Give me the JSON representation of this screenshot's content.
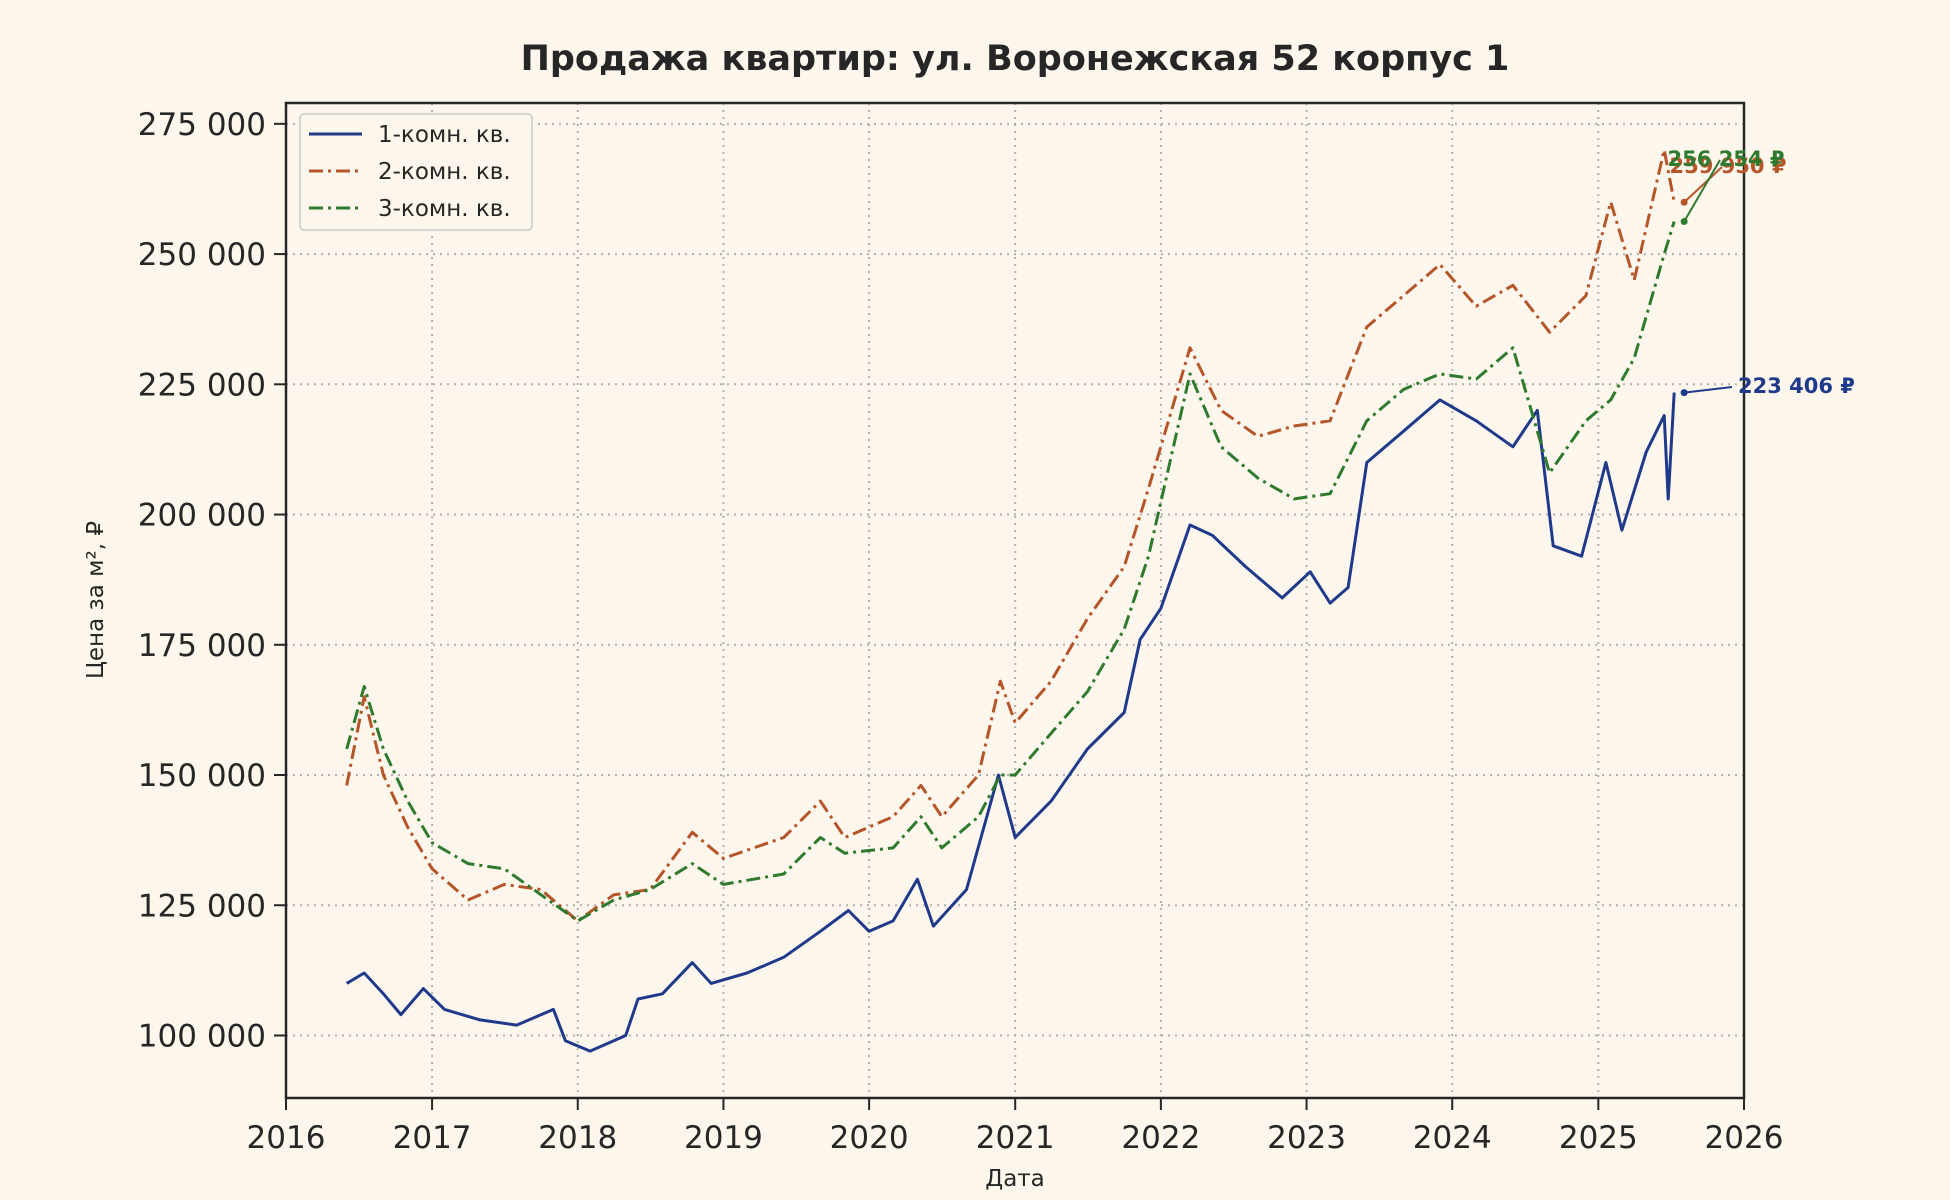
{
  "chart_data": {
    "type": "line",
    "title": "Продажа квартир: ул. Воронежская 52 корпус 1",
    "xlabel": "Дата",
    "ylabel": "Цена за м², ₽",
    "xlim": [
      "2016-01-01",
      "2026-01-01"
    ],
    "ylim": [
      88000,
      279000
    ],
    "x_ticks": [
      "2016",
      "2017",
      "2018",
      "2019",
      "2020",
      "2021",
      "2022",
      "2023",
      "2024",
      "2025",
      "2026"
    ],
    "y_ticks": [
      100000,
      125000,
      150000,
      175000,
      200000,
      225000,
      250000,
      275000
    ],
    "y_tick_labels": [
      "100 000",
      "125 000",
      "150 000",
      "175 000",
      "200 000",
      "225 000",
      "250 000",
      "275 000"
    ],
    "grid": true,
    "legend_position": "top-left",
    "series": [
      {
        "name": "1-комн. кв.",
        "color": "#1f3a8a",
        "dash": "solid",
        "end_label": "223 406 ₽",
        "points": [
          [
            "2016-06-01",
            110000
          ],
          [
            "2016-07-15",
            112000
          ],
          [
            "2016-09-01",
            108000
          ],
          [
            "2016-10-15",
            104000
          ],
          [
            "2016-12-10",
            109000
          ],
          [
            "2017-02-01",
            105000
          ],
          [
            "2017-05-01",
            103000
          ],
          [
            "2017-08-01",
            102000
          ],
          [
            "2017-11-01",
            105000
          ],
          [
            "2017-12-01",
            99000
          ],
          [
            "2018-02-01",
            97000
          ],
          [
            "2018-05-01",
            100000
          ],
          [
            "2018-06-01",
            107000
          ],
          [
            "2018-08-01",
            108000
          ],
          [
            "2018-10-15",
            114000
          ],
          [
            "2018-12-01",
            110000
          ],
          [
            "2019-03-01",
            112000
          ],
          [
            "2019-06-01",
            115000
          ],
          [
            "2019-09-01",
            120000
          ],
          [
            "2019-11-10",
            124000
          ],
          [
            "2020-01-01",
            120000
          ],
          [
            "2020-03-01",
            122000
          ],
          [
            "2020-05-01",
            130000
          ],
          [
            "2020-06-10",
            121000
          ],
          [
            "2020-09-01",
            128000
          ],
          [
            "2020-11-20",
            150000
          ],
          [
            "2021-01-01",
            138000
          ],
          [
            "2021-04-01",
            145000
          ],
          [
            "2021-07-01",
            155000
          ],
          [
            "2021-10-01",
            162000
          ],
          [
            "2021-11-10",
            176000
          ],
          [
            "2022-01-01",
            182000
          ],
          [
            "2022-03-15",
            198000
          ],
          [
            "2022-05-10",
            196000
          ],
          [
            "2022-08-01",
            190000
          ],
          [
            "2022-11-01",
            184000
          ],
          [
            "2023-01-10",
            189000
          ],
          [
            "2023-03-01",
            183000
          ],
          [
            "2023-04-15",
            186000
          ],
          [
            "2023-06-01",
            210000
          ],
          [
            "2023-09-01",
            216000
          ],
          [
            "2023-12-01",
            222000
          ],
          [
            "2024-03-01",
            218000
          ],
          [
            "2024-06-01",
            213000
          ],
          [
            "2024-08-01",
            220000
          ],
          [
            "2024-09-10",
            194000
          ],
          [
            "2024-11-20",
            192000
          ],
          [
            "2025-01-20",
            210000
          ],
          [
            "2025-03-01",
            197000
          ],
          [
            "2025-05-01",
            212000
          ],
          [
            "2025-06-15",
            219000
          ],
          [
            "2025-06-25",
            203000
          ],
          [
            "2025-07-10",
            223406
          ]
        ]
      },
      {
        "name": "2-комн. кв.",
        "color": "#b5562a",
        "dash": "dashdot",
        "end_label": "259 950 ₽",
        "points": [
          [
            "2016-06-01",
            148000
          ],
          [
            "2016-07-15",
            165000
          ],
          [
            "2016-09-01",
            150000
          ],
          [
            "2016-11-01",
            140000
          ],
          [
            "2017-01-01",
            132000
          ],
          [
            "2017-04-01",
            126000
          ],
          [
            "2017-07-01",
            129000
          ],
          [
            "2017-10-01",
            128000
          ],
          [
            "2018-01-01",
            122000
          ],
          [
            "2018-04-01",
            127000
          ],
          [
            "2018-07-01",
            128000
          ],
          [
            "2018-10-15",
            139000
          ],
          [
            "2019-01-01",
            134000
          ],
          [
            "2019-06-01",
            138000
          ],
          [
            "2019-09-01",
            145000
          ],
          [
            "2019-11-01",
            138000
          ],
          [
            "2020-03-01",
            142000
          ],
          [
            "2020-05-10",
            148000
          ],
          [
            "2020-07-01",
            142000
          ],
          [
            "2020-10-01",
            150000
          ],
          [
            "2020-11-25",
            168000
          ],
          [
            "2021-01-01",
            160000
          ],
          [
            "2021-04-01",
            168000
          ],
          [
            "2021-07-01",
            180000
          ],
          [
            "2021-10-01",
            190000
          ],
          [
            "2021-12-01",
            205000
          ],
          [
            "2022-03-15",
            232000
          ],
          [
            "2022-06-01",
            220000
          ],
          [
            "2022-09-01",
            215000
          ],
          [
            "2022-12-01",
            217000
          ],
          [
            "2023-03-01",
            218000
          ],
          [
            "2023-06-01",
            236000
          ],
          [
            "2023-09-01",
            242000
          ],
          [
            "2023-12-01",
            248000
          ],
          [
            "2024-03-01",
            240000
          ],
          [
            "2024-06-01",
            244000
          ],
          [
            "2024-09-01",
            235000
          ],
          [
            "2024-12-01",
            242000
          ],
          [
            "2025-02-01",
            260000
          ],
          [
            "2025-04-01",
            245000
          ],
          [
            "2025-06-15",
            270000
          ],
          [
            "2025-07-10",
            259950
          ]
        ]
      },
      {
        "name": "3-комн. кв.",
        "color": "#2e7a2e",
        "dash": "dashdot",
        "end_label": "256 254 ₽",
        "points": [
          [
            "2016-06-01",
            155000
          ],
          [
            "2016-07-15",
            167000
          ],
          [
            "2016-09-01",
            155000
          ],
          [
            "2016-11-01",
            145000
          ],
          [
            "2017-01-01",
            137000
          ],
          [
            "2017-04-01",
            133000
          ],
          [
            "2017-07-01",
            132000
          ],
          [
            "2017-10-01",
            127000
          ],
          [
            "2018-01-01",
            122000
          ],
          [
            "2018-04-01",
            126000
          ],
          [
            "2018-07-01",
            128000
          ],
          [
            "2018-10-15",
            133000
          ],
          [
            "2019-01-01",
            129000
          ],
          [
            "2019-06-01",
            131000
          ],
          [
            "2019-09-01",
            138000
          ],
          [
            "2019-11-01",
            135000
          ],
          [
            "2020-03-01",
            136000
          ],
          [
            "2020-05-10",
            142000
          ],
          [
            "2020-07-01",
            136000
          ],
          [
            "2020-10-01",
            142000
          ],
          [
            "2020-11-25",
            150000
          ],
          [
            "2021-01-01",
            150000
          ],
          [
            "2021-04-01",
            158000
          ],
          [
            "2021-07-01",
            166000
          ],
          [
            "2021-10-01",
            178000
          ],
          [
            "2021-12-01",
            192000
          ],
          [
            "2022-03-15",
            227000
          ],
          [
            "2022-06-01",
            213000
          ],
          [
            "2022-09-01",
            207000
          ],
          [
            "2022-12-01",
            203000
          ],
          [
            "2023-03-01",
            204000
          ],
          [
            "2023-06-01",
            218000
          ],
          [
            "2023-09-01",
            224000
          ],
          [
            "2023-12-01",
            227000
          ],
          [
            "2024-03-01",
            226000
          ],
          [
            "2024-06-01",
            232000
          ],
          [
            "2024-09-01",
            208000
          ],
          [
            "2024-12-01",
            218000
          ],
          [
            "2025-02-01",
            222000
          ],
          [
            "2025-04-01",
            230000
          ],
          [
            "2025-06-15",
            250000
          ],
          [
            "2025-07-10",
            256254
          ]
        ]
      }
    ]
  }
}
